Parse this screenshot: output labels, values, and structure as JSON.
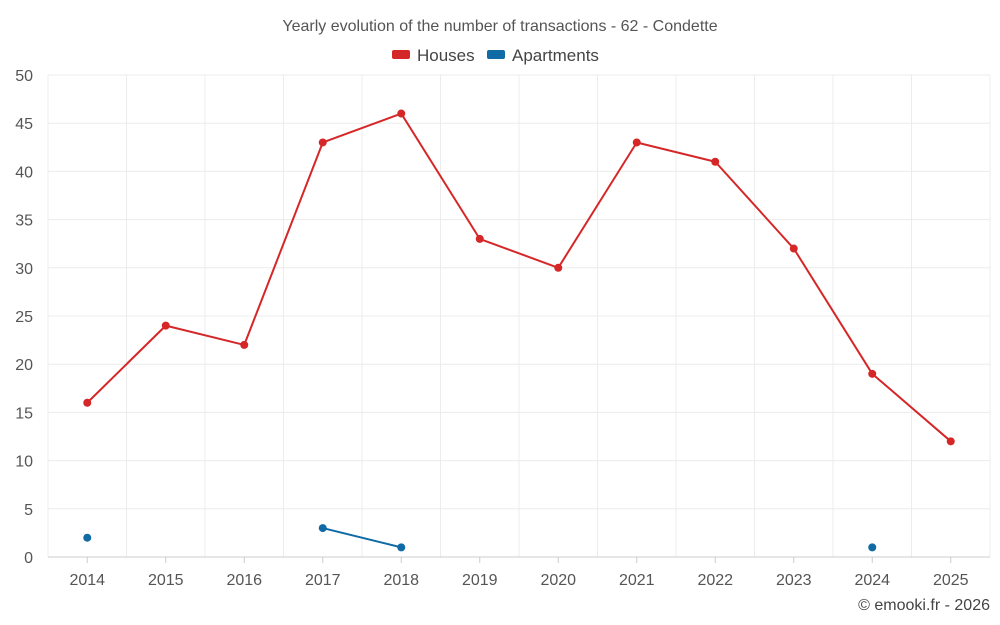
{
  "chart_data": {
    "type": "line",
    "title": "Yearly evolution of the number of transactions - 62 - Condette",
    "xlabel": "",
    "ylabel": "",
    "categories": [
      "2014",
      "2015",
      "2016",
      "2017",
      "2018",
      "2019",
      "2020",
      "2021",
      "2022",
      "2023",
      "2024",
      "2025"
    ],
    "ylim": [
      0,
      50
    ],
    "yticks": [
      "0",
      "5",
      "10",
      "15",
      "20",
      "25",
      "30",
      "35",
      "40",
      "45",
      "50"
    ],
    "grid": true,
    "legend_position": "top-center",
    "series": [
      {
        "name": "Houses",
        "color": "#d62728",
        "values": [
          16,
          24,
          22,
          43,
          46,
          33,
          30,
          43,
          41,
          32,
          19,
          12
        ]
      },
      {
        "name": "Apartments",
        "color": "#0f6aa6",
        "values": [
          2,
          null,
          null,
          3,
          1,
          null,
          null,
          null,
          null,
          null,
          1,
          null
        ]
      }
    ],
    "credit": "© emooki.fr - 2026"
  }
}
